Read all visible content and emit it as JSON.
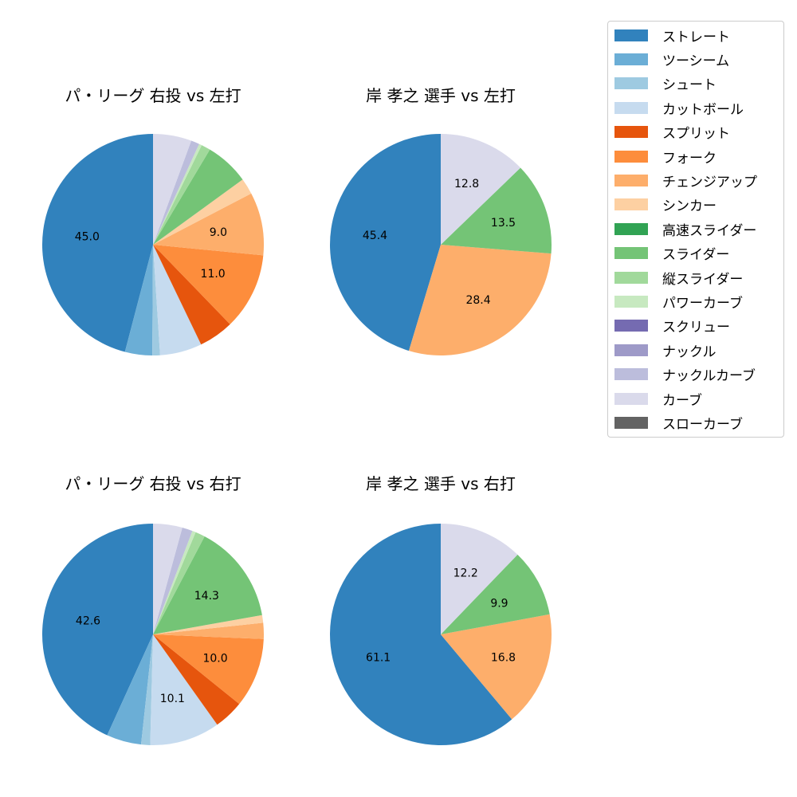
{
  "legend": {
    "items": [
      {
        "label": "ストレート",
        "color": "#3182bd"
      },
      {
        "label": "ツーシーム",
        "color": "#6baed6"
      },
      {
        "label": "シュート",
        "color": "#9ecae1"
      },
      {
        "label": "カットボール",
        "color": "#c6dbef"
      },
      {
        "label": "スプリット",
        "color": "#e6550d"
      },
      {
        "label": "フォーク",
        "color": "#fd8d3c"
      },
      {
        "label": "チェンジアップ",
        "color": "#fdae6b"
      },
      {
        "label": "シンカー",
        "color": "#fdd0a2"
      },
      {
        "label": "高速スライダー",
        "color": "#31a354"
      },
      {
        "label": "スライダー",
        "color": "#74c476"
      },
      {
        "label": "縦スライダー",
        "color": "#a1d99b"
      },
      {
        "label": "パワーカーブ",
        "color": "#c7e9c0"
      },
      {
        "label": "スクリュー",
        "color": "#756bb1"
      },
      {
        "label": "ナックル",
        "color": "#9e9ac8"
      },
      {
        "label": "ナックルカーブ",
        "color": "#bcbddc"
      },
      {
        "label": "カーブ",
        "color": "#dadaeb"
      },
      {
        "label": "スローカーブ",
        "color": "#636363"
      }
    ]
  },
  "chart_data": [
    {
      "type": "pie",
      "title": "パ・リーグ 右投 vs 左打",
      "categories": [
        "ストレート",
        "ツーシーム",
        "シュート",
        "カットボール",
        "スプリット",
        "フォーク",
        "チェンジアップ",
        "シンカー",
        "スライダー",
        "縦スライダー",
        "パワーカーブ",
        "ナックルカーブ",
        "カーブ"
      ],
      "values": [
        45.0,
        3.9,
        1.1,
        6.0,
        5.0,
        11.0,
        9.0,
        2.3,
        6.3,
        1.3,
        0.4,
        1.2,
        5.5
      ],
      "labels": [
        "45.0",
        "",
        "",
        "",
        "",
        "11.0",
        "9.0",
        "",
        "",
        "",
        "",
        "",
        ""
      ]
    },
    {
      "type": "pie",
      "title": "岸 孝之 選手 vs 左打",
      "categories": [
        "ストレート",
        "チェンジアップ",
        "スライダー",
        "カーブ"
      ],
      "values": [
        45.4,
        28.4,
        13.5,
        12.8
      ],
      "labels": [
        "45.4",
        "28.4",
        "13.5",
        "12.8"
      ]
    },
    {
      "type": "pie",
      "title": "パ・リーグ 右投 vs 右打",
      "categories": [
        "ストレート",
        "ツーシーム",
        "シュート",
        "カットボール",
        "スプリット",
        "フォーク",
        "チェンジアップ",
        "シンカー",
        "スライダー",
        "縦スライダー",
        "パワーカーブ",
        "ナックルカーブ",
        "カーブ"
      ],
      "values": [
        42.6,
        5.0,
        1.3,
        10.1,
        4.3,
        10.0,
        2.3,
        1.1,
        14.3,
        1.4,
        0.5,
        1.5,
        4.2
      ],
      "labels": [
        "42.6",
        "",
        "",
        "10.1",
        "",
        "10.0",
        "",
        "",
        "14.3",
        "",
        "",
        "",
        ""
      ]
    },
    {
      "type": "pie",
      "title": "岸 孝之 選手 vs 右打",
      "categories": [
        "ストレート",
        "チェンジアップ",
        "スライダー",
        "カーブ"
      ],
      "values": [
        61.1,
        16.8,
        9.9,
        12.2
      ],
      "labels": [
        "61.1",
        "16.8",
        "9.9",
        "12.2"
      ]
    }
  ]
}
